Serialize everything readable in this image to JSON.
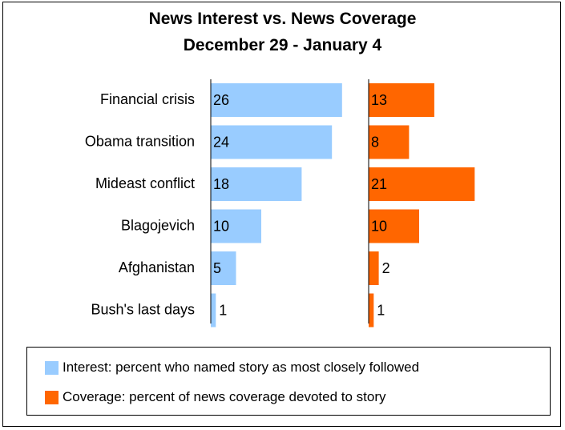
{
  "chart_data": {
    "type": "bar",
    "orientation": "horizontal",
    "title": "News Interest vs. News Coverage",
    "subtitle": "December 29 - January 4",
    "categories": [
      "Financial crisis",
      "Obama transition",
      "Mideast conflict",
      "Blagojevich",
      "Afghanistan",
      "Bush's last days"
    ],
    "series": [
      {
        "name": "Interest: percent who named story as most closely followed",
        "color": "#99ccff",
        "values": [
          26,
          24,
          18,
          10,
          5,
          1
        ]
      },
      {
        "name": "Coverage: percent of news coverage devoted to story",
        "color": "#ff6600",
        "values": [
          13,
          8,
          21,
          10,
          2,
          1
        ]
      }
    ],
    "layout": "two side-by-side panels, one per series",
    "grid": false,
    "legend_position": "bottom"
  }
}
